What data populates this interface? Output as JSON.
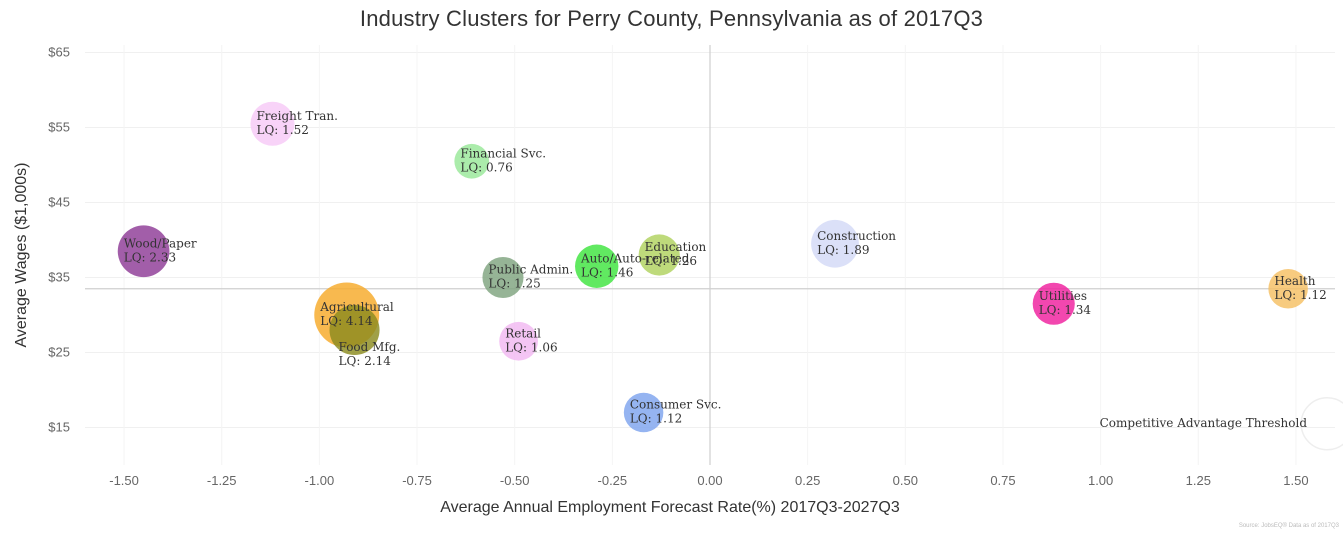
{
  "chart_data": {
    "type": "scatter",
    "title": "Industry Clusters for Perry County, Pennsylvania as of 2017Q3",
    "xlabel": "Average Annual Employment Forecast Rate(%) 2017Q3-2027Q3",
    "ylabel": "Average Wages ($1,000s)",
    "xlim": [
      -1.6,
      1.6
    ],
    "ylim": [
      10,
      66
    ],
    "x_ticks": [
      "-1.50",
      "-1.25",
      "-1.00",
      "-0.75",
      "-0.50",
      "-0.25",
      "0.00",
      "0.25",
      "0.50",
      "0.75",
      "1.00",
      "1.25",
      "1.50"
    ],
    "x_tick_values": [
      -1.5,
      -1.25,
      -1.0,
      -0.75,
      -0.5,
      -0.25,
      0,
      0.25,
      0.5,
      0.75,
      1.0,
      1.25,
      1.5
    ],
    "y_ticks": [
      "$65",
      "$55",
      "$45",
      "$35",
      "$25",
      "$15"
    ],
    "y_tick_values": [
      65,
      55,
      45,
      35,
      25,
      15
    ],
    "threshold_label": "Competitive Advantage Threshold",
    "threshold": {
      "x": 0.0,
      "y": 33.5
    },
    "grid": true,
    "source_note": "Source: JobsEQ® Data as of 2017Q3",
    "points": [
      {
        "name": "Freight Tran.",
        "lq": "LQ: 1.52",
        "lq_value": 1.52,
        "x": -1.12,
        "y": 55.5,
        "color": "#f6c9f6",
        "label_side": "left"
      },
      {
        "name": "Financial Svc.",
        "lq": "LQ: 0.76",
        "lq_value": 0.76,
        "x": -0.61,
        "y": 50.5,
        "color": "#98e898",
        "label_side": "left"
      },
      {
        "name": "Wood/Paper",
        "lq": "LQ: 2.33",
        "lq_value": 2.33,
        "x": -1.45,
        "y": 38.5,
        "color": "#8e3a96",
        "label_side": "left"
      },
      {
        "name": "Agricultural",
        "lq": "LQ: 4.14",
        "lq_value": 4.14,
        "x": -0.93,
        "y": 30.0,
        "color": "#f7a928",
        "label_side": "left"
      },
      {
        "name": "Food Mfg.",
        "lq": "LQ: 2.14",
        "lq_value": 2.14,
        "x": -0.91,
        "y": 28.0,
        "color": "#8b8b1e",
        "label_side": "below"
      },
      {
        "name": "Public Admin.",
        "lq": "LQ: 1.25",
        "lq_value": 1.25,
        "x": -0.53,
        "y": 35.0,
        "color": "#7fa37f",
        "label_side": "left"
      },
      {
        "name": "Auto/Auto-related",
        "lq": "LQ: 1.46",
        "lq_value": 1.46,
        "x": -0.29,
        "y": 36.5,
        "color": "#3ee43e",
        "label_side": "left"
      },
      {
        "name": "Education",
        "lq": "LQ: 1.26",
        "lq_value": 1.26,
        "x": -0.13,
        "y": 38.0,
        "color": "#b0d25e",
        "label_side": "left"
      },
      {
        "name": "Retail",
        "lq": "LQ: 1.06",
        "lq_value": 1.06,
        "x": -0.49,
        "y": 26.5,
        "color": "#f1b8f1",
        "label_side": "left"
      },
      {
        "name": "Consumer Svc.",
        "lq": "LQ: 1.12",
        "lq_value": 1.12,
        "x": -0.17,
        "y": 17.0,
        "color": "#7ea4ee",
        "label_side": "left"
      },
      {
        "name": "Construction",
        "lq": "LQ: 1.89",
        "lq_value": 1.89,
        "x": 0.32,
        "y": 39.5,
        "color": "#d3d9f6",
        "label_side": "left"
      },
      {
        "name": "Utilities",
        "lq": "LQ: 1.34",
        "lq_value": 1.34,
        "x": 0.88,
        "y": 31.5,
        "color": "#ef1f9e",
        "label_side": "left"
      },
      {
        "name": "Health",
        "lq": "LQ: 1.12",
        "lq_value": 1.12,
        "x": 1.48,
        "y": 33.5,
        "color": "#f5c063",
        "label_side": "left"
      }
    ]
  }
}
